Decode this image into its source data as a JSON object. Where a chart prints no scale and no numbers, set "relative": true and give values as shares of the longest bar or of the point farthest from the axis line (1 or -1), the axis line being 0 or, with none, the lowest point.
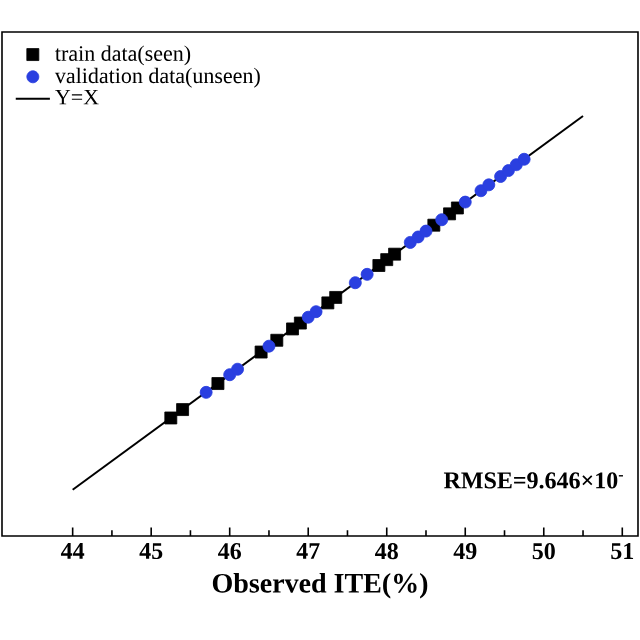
{
  "chart_data": {
    "type": "scatter",
    "xlabel": "Observed ITE(%)",
    "relative": true,
    "xlim": [
      43.1,
      51.2
    ],
    "xticks": [
      44,
      45,
      46,
      47,
      48,
      49,
      50,
      51
    ],
    "tick_labels": "x",
    "series": [
      {
        "name": "train data(seen)",
        "color": "#000000",
        "marker": "square",
        "x": [
          45.25,
          45.4,
          45.85,
          46.4,
          46.6,
          46.8,
          46.9,
          47.25,
          47.35,
          47.9,
          48.0,
          48.1,
          48.6,
          48.8,
          48.9
        ],
        "values": [
          0.281,
          0.301,
          0.363,
          0.438,
          0.466,
          0.493,
          0.507,
          0.555,
          0.568,
          0.644,
          0.658,
          0.671,
          0.74,
          0.767,
          0.781
        ]
      },
      {
        "name": "validation data(unseen)",
        "color": "#2a3fe0",
        "marker": "circle",
        "x": [
          45.7,
          46.0,
          46.1,
          46.5,
          47.0,
          47.1,
          47.6,
          47.75,
          48.3,
          48.4,
          48.5,
          48.7,
          49.0,
          49.2,
          49.3,
          49.45,
          49.55,
          49.65,
          49.75
        ],
        "values": [
          0.342,
          0.384,
          0.397,
          0.452,
          0.521,
          0.534,
          0.603,
          0.623,
          0.699,
          0.712,
          0.726,
          0.753,
          0.795,
          0.822,
          0.836,
          0.856,
          0.87,
          0.884,
          0.897
        ]
      },
      {
        "name": "Y=X",
        "type": "line",
        "color": "#000000",
        "marker": "none",
        "line_style": "solid",
        "x": [
          44,
          50.5
        ],
        "values": [
          0.11,
          1
        ]
      }
    ],
    "legend": "top left",
    "annotations": [
      "RMSE=9.646×10$^{-}$"
    ]
  }
}
